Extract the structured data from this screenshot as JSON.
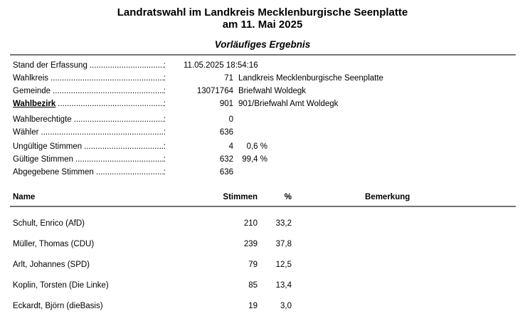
{
  "page": {
    "title_line1": "Landratswahl im Landkreis Mecklenburgische Seenplatte",
    "title_line2": "am 11. Mai 2025",
    "subtitle": "Vorläufiges Ergebnis"
  },
  "leader": {
    "dots": "........................................................................",
    "colon": ":"
  },
  "info": {
    "rows": [
      {
        "label": "Stand der Erfassung",
        "value": "11.05.2025 18:54:16",
        "percent": "",
        "text": ""
      },
      {
        "label": "Wahlkreis",
        "value": "71",
        "percent": "",
        "text": "Landkreis Mecklenburgische Seenplatte"
      },
      {
        "label": "Gemeinde",
        "value": "13071764",
        "percent": "",
        "text": "Briefwahl Woldegk"
      },
      {
        "label": "Wahlbezirk",
        "value": "901",
        "percent": "",
        "text": "901/Briefwahl Amt Woldegk"
      },
      {
        "label": "Wahlberechtigte",
        "value": "0",
        "percent": "",
        "text": ""
      },
      {
        "label": "Wähler",
        "value": "636",
        "percent": "",
        "text": ""
      },
      {
        "label": "Ungültige Stimmen",
        "value": "4",
        "percent": "0,6 %",
        "text": ""
      },
      {
        "label": "Gültige Stimmen",
        "value": "632",
        "percent": "99,4 %",
        "text": ""
      },
      {
        "label": "Abgegebene Stimmen",
        "value": "636",
        "percent": "",
        "text": ""
      }
    ]
  },
  "results_table": {
    "headers": {
      "name": "Name",
      "stimmen": "Stimmen",
      "percent": "%",
      "bemerkung": "Bemerkung"
    },
    "rows": [
      {
        "name": "Schult, Enrico (AfD)",
        "stimmen": "210",
        "percent": "33,2",
        "bemerkung": ""
      },
      {
        "name": "Müller, Thomas (CDU)",
        "stimmen": "239",
        "percent": "37,8",
        "bemerkung": ""
      },
      {
        "name": "Arlt, Johannes (SPD)",
        "stimmen": "79",
        "percent": "12,5",
        "bemerkung": ""
      },
      {
        "name": "Koplin, Torsten (Die Linke)",
        "stimmen": "85",
        "percent": "13,4",
        "bemerkung": ""
      },
      {
        "name": "Eckardt, Björn (dieBasis)",
        "stimmen": "19",
        "percent": "3,0",
        "bemerkung": ""
      }
    ]
  },
  "colors": {
    "rule": "#757575",
    "text": "#000000",
    "background": "#ffffff"
  }
}
